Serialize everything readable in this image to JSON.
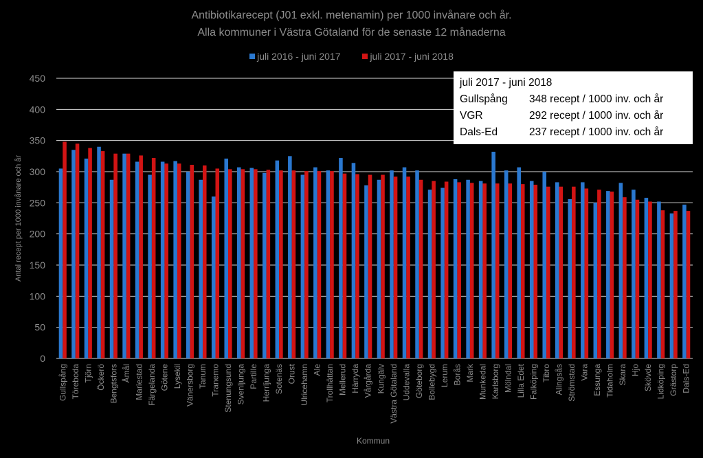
{
  "title_line1": "Antibiotikarecept (J01 exkl. metenamin) per 1000 invånare och år.",
  "title_line2": "Alla kommuner i Västra Götaland för de senaste 12 månaderna",
  "colors": {
    "series1": "#2a78d0",
    "series2": "#d21414",
    "background": "#000000",
    "text": "#8c8c8c",
    "grid": "#d9d9d9"
  },
  "infobox": {
    "heading": "juli 2017 - juni 2018",
    "rows": [
      {
        "label": "Gullspång",
        "value": "348 recept / 1000 inv. och år"
      },
      {
        "label": "VGR",
        "value": "292 recept / 1000 inv. och år"
      },
      {
        "label": "Dals-Ed",
        "value": "237 recept / 1000 inv. och år"
      }
    ]
  },
  "chart_data": {
    "type": "bar",
    "title": "Antibiotikarecept (J01 exkl. metenamin) per 1000 invånare och år. Alla kommuner i Västra Götaland för de senaste 12 månaderna",
    "xlabel": "Kommun",
    "ylabel": "Antal recept per 1000 invånare och år",
    "ylim": [
      0,
      450
    ],
    "yticks": [
      0,
      50,
      100,
      150,
      200,
      250,
      300,
      350,
      400,
      450
    ],
    "grid": true,
    "legend_position": "top-center",
    "categories": [
      "Gullspång",
      "Töreboda",
      "Tjörn",
      "Öckerö",
      "Bengtsfors",
      "Åmål",
      "Mariestad",
      "Färgelanda",
      "Götene",
      "Lysekil",
      "Vänersborg",
      "Tanum",
      "Tranemo",
      "Stenungsund",
      "Svenljunga",
      "Partille",
      "Herrljunga",
      "Sotenäs",
      "Orust",
      "Ulricehamn",
      "Ale",
      "Trollhättan",
      "Mellerud",
      "Härryda",
      "Vårgårda",
      "Kungälv",
      "Västra Götaland",
      "Uddevalla",
      "Göteborg",
      "Bollebygd",
      "Lerum",
      "Borås",
      "Mark",
      "Munkedal",
      "Karlsborg",
      "Mölndal",
      "Lilla Edet",
      "Falköping",
      "Tibro",
      "Alingsås",
      "Strömstad",
      "Vara",
      "Essunga",
      "Tidaholm",
      "Skara",
      "Hjo",
      "Skövde",
      "Lidköping",
      "Grästorp",
      "Dals-Ed"
    ],
    "series": [
      {
        "name": "juli 2016 - juni 2017",
        "values": [
          305,
          335,
          321,
          340,
          287,
          329,
          316,
          295,
          316,
          317,
          300,
          287,
          260,
          321,
          307,
          306,
          298,
          318,
          325,
          295,
          307,
          302,
          322,
          314,
          278,
          287,
          302,
          307,
          302,
          271,
          274,
          288,
          287,
          285,
          332,
          302,
          307,
          285,
          300,
          283,
          256,
          283,
          250,
          269,
          282,
          271,
          258,
          252,
          233,
          247
        ]
      },
      {
        "name": "juli 2017 - juni 2018",
        "values": [
          348,
          345,
          338,
          333,
          329,
          329,
          326,
          322,
          313,
          313,
          311,
          310,
          305,
          304,
          304,
          304,
          303,
          302,
          302,
          301,
          301,
          301,
          297,
          296,
          295,
          295,
          292,
          292,
          287,
          285,
          284,
          283,
          282,
          281,
          281,
          281,
          280,
          279,
          276,
          276,
          276,
          273,
          271,
          268,
          259,
          255,
          252,
          238,
          237,
          237
        ]
      }
    ]
  }
}
